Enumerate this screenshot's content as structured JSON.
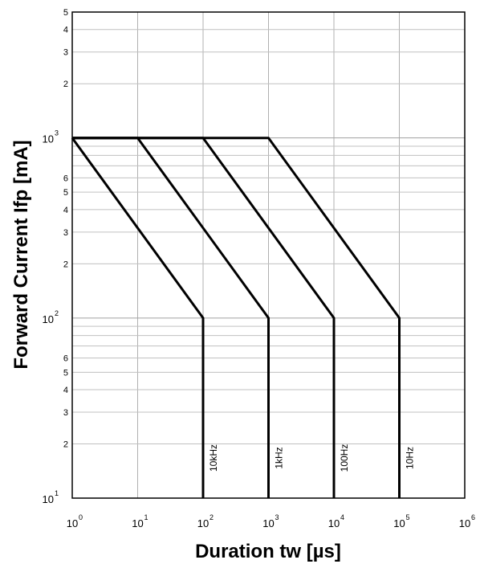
{
  "chart_data": {
    "type": "line",
    "title": "",
    "xlabel": "Duration tw [µs]",
    "ylabel": "Forward Current Ifp [mA]",
    "xscale": "log",
    "yscale": "log",
    "xlim": [
      1,
      1000000
    ],
    "ylim": [
      10,
      5000
    ],
    "grid": true,
    "x_ticks": [
      {
        "base": "10",
        "exp": "0"
      },
      {
        "base": "10",
        "exp": "1"
      },
      {
        "base": "10",
        "exp": "2"
      },
      {
        "base": "10",
        "exp": "3"
      },
      {
        "base": "10",
        "exp": "4"
      },
      {
        "base": "10",
        "exp": "5"
      },
      {
        "base": "10",
        "exp": "6"
      }
    ],
    "y_major_ticks": [
      {
        "base": "10",
        "exp": "1"
      },
      {
        "base": "10",
        "exp": "2"
      },
      {
        "base": "10",
        "exp": "3"
      }
    ],
    "y_minor_labels": [
      "2",
      "3",
      "4",
      "5",
      "6",
      "2",
      "3",
      "4",
      "5",
      "6",
      "2",
      "3",
      "4",
      "5"
    ],
    "series": [
      {
        "name": "10kHz",
        "x": [
          1,
          100,
          100
        ],
        "y": [
          1000,
          100,
          10
        ]
      },
      {
        "name": "1kHz",
        "x": [
          1,
          10,
          1000,
          1000
        ],
        "y": [
          1000,
          1000,
          100,
          10
        ]
      },
      {
        "name": "100Hz",
        "x": [
          1,
          100,
          10000,
          10000
        ],
        "y": [
          1000,
          1000,
          100,
          10
        ]
      },
      {
        "name": "10Hz",
        "x": [
          1,
          1000,
          100000,
          100000
        ],
        "y": [
          1000,
          1000,
          100,
          10
        ]
      }
    ]
  }
}
